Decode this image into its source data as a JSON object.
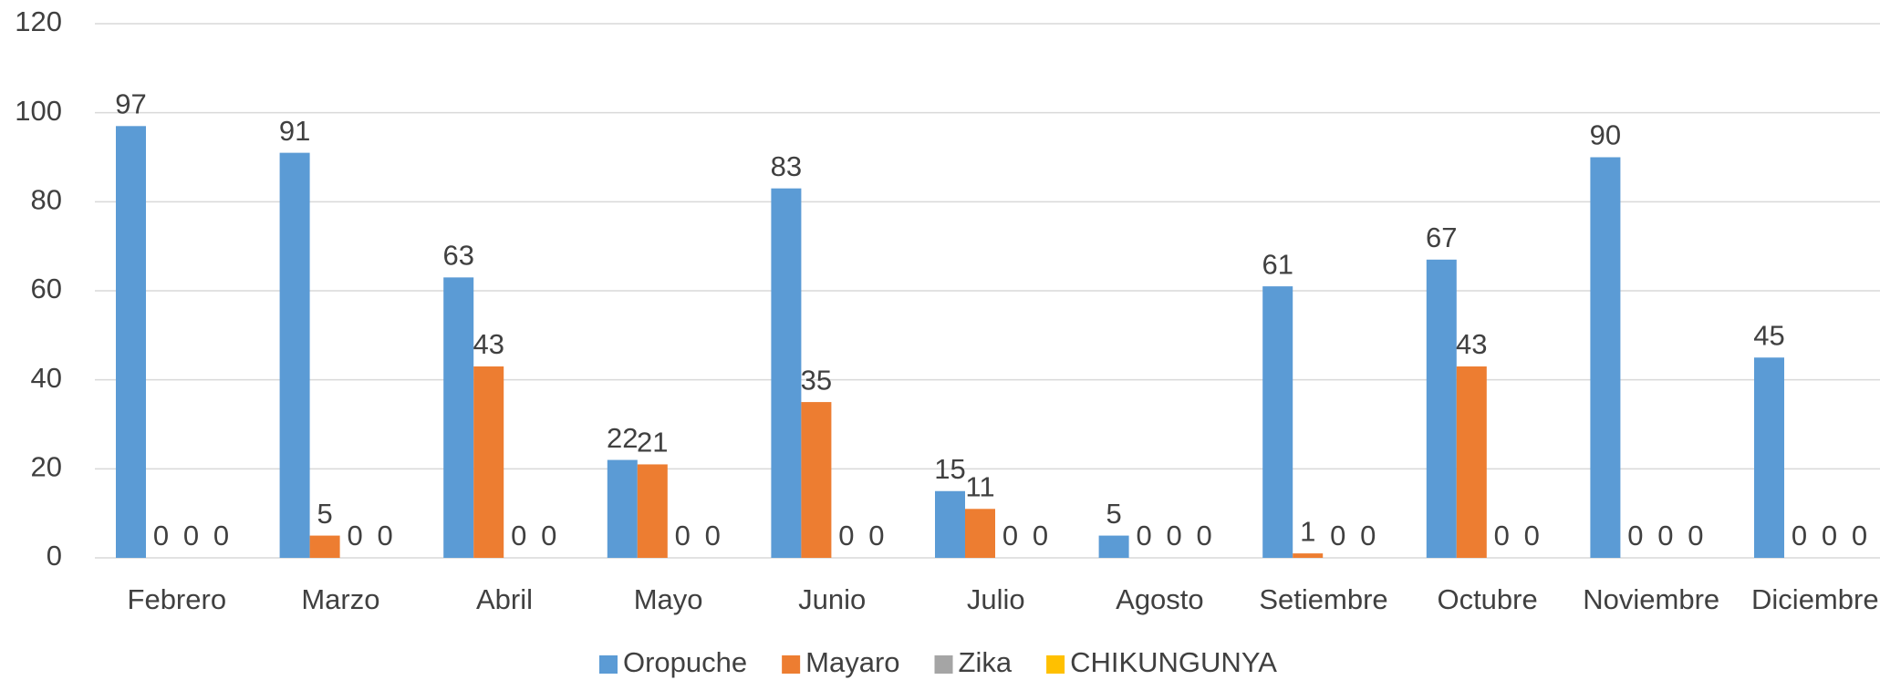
{
  "chart_data": {
    "type": "bar",
    "categories": [
      "Febrero",
      "Marzo",
      "Abril",
      "Mayo",
      "Junio",
      "Julio",
      "Agosto",
      "Setiembre",
      "Octubre",
      "Noviembre",
      "Diciembre"
    ],
    "series": [
      {
        "name": "Oropuche",
        "color": "#5b9bd5",
        "values": [
          97,
          91,
          63,
          22,
          83,
          15,
          5,
          61,
          67,
          90,
          45
        ]
      },
      {
        "name": "Mayaro",
        "color": "#ed7d31",
        "values": [
          0,
          5,
          43,
          21,
          35,
          11,
          0,
          1,
          43,
          0,
          0
        ]
      },
      {
        "name": "Zika",
        "color": "#a5a5a5",
        "values": [
          0,
          0,
          0,
          0,
          0,
          0,
          0,
          0,
          0,
          0,
          0
        ]
      },
      {
        "name": "CHIKUNGUNYA",
        "color": "#ffc000",
        "values": [
          0,
          0,
          0,
          0,
          0,
          0,
          0,
          0,
          0,
          0,
          0
        ]
      }
    ],
    "ylim": [
      0,
      120
    ],
    "yticks": [
      0,
      20,
      40,
      60,
      80,
      100,
      120
    ],
    "grid": true,
    "legend": "bottom"
  }
}
